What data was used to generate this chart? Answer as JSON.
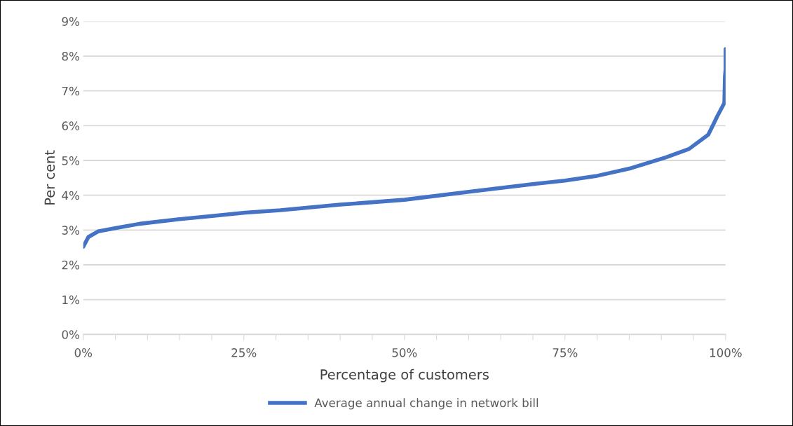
{
  "chart_data": {
    "type": "line",
    "xlabel": "Percentage of customers",
    "ylabel": "Per cent",
    "xlim": [
      0,
      100
    ],
    "ylim": [
      0,
      9
    ],
    "xticks": [
      {
        "value": 0,
        "label": "0%"
      },
      {
        "value": 5,
        "label": null
      },
      {
        "value": 10,
        "label": null
      },
      {
        "value": 15,
        "label": null
      },
      {
        "value": 20,
        "label": null
      },
      {
        "value": 25,
        "label": "25%"
      },
      {
        "value": 30,
        "label": null
      },
      {
        "value": 35,
        "label": null
      },
      {
        "value": 40,
        "label": null
      },
      {
        "value": 45,
        "label": null
      },
      {
        "value": 50,
        "label": "50%"
      },
      {
        "value": 55,
        "label": null
      },
      {
        "value": 60,
        "label": null
      },
      {
        "value": 65,
        "label": null
      },
      {
        "value": 70,
        "label": null
      },
      {
        "value": 75,
        "label": "75%"
      },
      {
        "value": 80,
        "label": null
      },
      {
        "value": 85,
        "label": null
      },
      {
        "value": 90,
        "label": null
      },
      {
        "value": 95,
        "label": null
      },
      {
        "value": 100,
        "label": "100%"
      }
    ],
    "yticks": [
      {
        "value": 0,
        "label": "0%"
      },
      {
        "value": 1,
        "label": "1%"
      },
      {
        "value": 2,
        "label": "2%"
      },
      {
        "value": 3,
        "label": "3%"
      },
      {
        "value": 4,
        "label": "4%"
      },
      {
        "value": 5,
        "label": "5%"
      },
      {
        "value": 6,
        "label": "6%"
      },
      {
        "value": 7,
        "label": "7%"
      },
      {
        "value": 8,
        "label": "8%"
      },
      {
        "value": 9,
        "label": "9%"
      }
    ],
    "grid": "y",
    "legend": "bottom",
    "marker": "none",
    "line_style": "solid",
    "series": [
      {
        "name": "Average annual change in network bill",
        "color": "#4472c4",
        "x": [
          0,
          0.8,
          2.3,
          5.2,
          8.8,
          14.3,
          19.8,
          25.2,
          30.7,
          40,
          50,
          60,
          70,
          75,
          79.8,
          85.3,
          90.7,
          94.3,
          97.3,
          98.0,
          98.7,
          99.8,
          99.9,
          100,
          100
        ],
        "values": [
          2.52,
          2.8,
          2.96,
          3.06,
          3.18,
          3.3,
          3.4,
          3.5,
          3.57,
          3.73,
          3.87,
          4.1,
          4.32,
          4.42,
          4.55,
          4.78,
          5.09,
          5.33,
          5.74,
          6.0,
          6.27,
          6.65,
          7.42,
          7.62,
          8.2
        ]
      }
    ]
  }
}
